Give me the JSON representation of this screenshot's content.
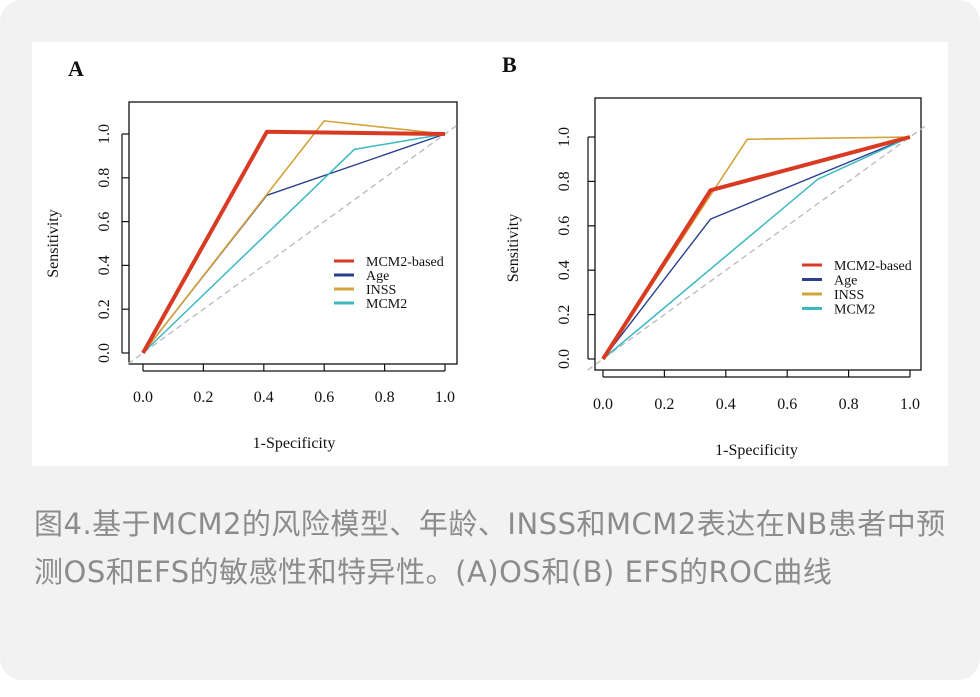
{
  "caption": "图4.基于MCM2的风险模型、年龄、INSS和MCM2表达在NB患者中预测OS和EFS的敏感性和特异性。(A)OS和(B) EFS的ROC曲线",
  "colors": {
    "mcm2_based": "#d93a22",
    "age": "#2a3f8f",
    "inss": "#d4a33a",
    "mcm2": "#3cb8c0",
    "diagonal": "#b8b8c0"
  },
  "chart_data": [
    {
      "type": "line",
      "panel_label": "A",
      "xlabel": "1-Specificity",
      "ylabel": "Sensitivity",
      "xlim": [
        0,
        1
      ],
      "ylim": [
        0,
        1
      ],
      "xticks": [
        "0.0",
        "0.2",
        "0.4",
        "0.6",
        "0.8",
        "1.0"
      ],
      "yticks": [
        "0.0",
        "0.2",
        "0.4",
        "0.6",
        "0.8",
        "1.0"
      ],
      "grid": false,
      "legend_position": "bottom-right",
      "diagonal_reference": true,
      "series": [
        {
          "name": "MCM2-based",
          "x": [
            0,
            0.41,
            1.0
          ],
          "y": [
            0,
            1.01,
            1.0
          ]
        },
        {
          "name": "Age",
          "x": [
            0,
            0.41,
            1.0
          ],
          "y": [
            0,
            0.72,
            1.0
          ]
        },
        {
          "name": "INSS",
          "x": [
            0,
            0.6,
            1.0
          ],
          "y": [
            0,
            1.06,
            1.0
          ]
        },
        {
          "name": "MCM2",
          "x": [
            0,
            0.7,
            1.0
          ],
          "y": [
            0,
            0.93,
            1.0
          ]
        }
      ]
    },
    {
      "type": "line",
      "panel_label": "B",
      "xlabel": "1-Specificity",
      "ylabel": "Sensitivity",
      "xlim": [
        0,
        1
      ],
      "ylim": [
        0,
        1
      ],
      "xticks": [
        "0.0",
        "0.2",
        "0.4",
        "0.6",
        "0.8",
        "1.0"
      ],
      "yticks": [
        "0.0",
        "0.2",
        "0.4",
        "0.6",
        "0.8",
        "1.0"
      ],
      "grid": false,
      "legend_position": "bottom-right",
      "diagonal_reference": true,
      "series": [
        {
          "name": "MCM2-based",
          "x": [
            0,
            0.35,
            1.0
          ],
          "y": [
            0,
            0.76,
            1.0
          ]
        },
        {
          "name": "Age",
          "x": [
            0,
            0.35,
            1.0
          ],
          "y": [
            0,
            0.63,
            1.0
          ]
        },
        {
          "name": "INSS",
          "x": [
            0,
            0.47,
            1.0
          ],
          "y": [
            0,
            0.99,
            1.0
          ]
        },
        {
          "name": "MCM2",
          "x": [
            0,
            0.7,
            1.0
          ],
          "y": [
            0,
            0.81,
            1.0
          ]
        }
      ]
    }
  ]
}
